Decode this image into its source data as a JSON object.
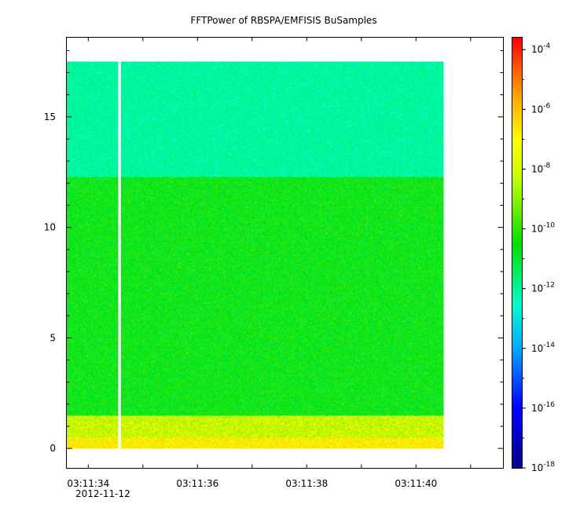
{
  "chart_data": {
    "type": "heatmap",
    "title": "FFTPower of RBSPA/EMFISIS  BuSamples",
    "xlabel": "",
    "ylabel": "",
    "x_ticks": [
      "03:11:34",
      "03:11:36",
      "03:11:38",
      "03:11:40"
    ],
    "x_date_label": "2012-11-12",
    "x_range_seconds_after_03_11_00": [
      33.6,
      41.6
    ],
    "x_data_range_seconds_after_03_11_00": [
      33.6,
      40.5
    ],
    "data_gap_seconds_after_03_11_00": [
      34.55,
      34.6
    ],
    "y_ticks": [
      0,
      5,
      10,
      15
    ],
    "ylim": [
      -0.9,
      18.6
    ],
    "y_data_range": [
      0,
      17.5
    ],
    "colorbar": {
      "scale": "log",
      "range_exponent": [
        -18,
        -3.6
      ],
      "tick_exponents": [
        -18,
        -16,
        -14,
        -12,
        -10,
        -8,
        -6,
        -4
      ],
      "colormap": "rainbow"
    },
    "power_bands": [
      {
        "y_from": 0,
        "y_to": 0.5,
        "log10_power": -8.2
      },
      {
        "y_from": 0.5,
        "y_to": 1.5,
        "log10_power": -9.0
      },
      {
        "y_from": 1.5,
        "y_to": 12.3,
        "log10_power": -10.6
      },
      {
        "y_from": 12.3,
        "y_to": 17.5,
        "log10_power": -12.0
      }
    ]
  }
}
